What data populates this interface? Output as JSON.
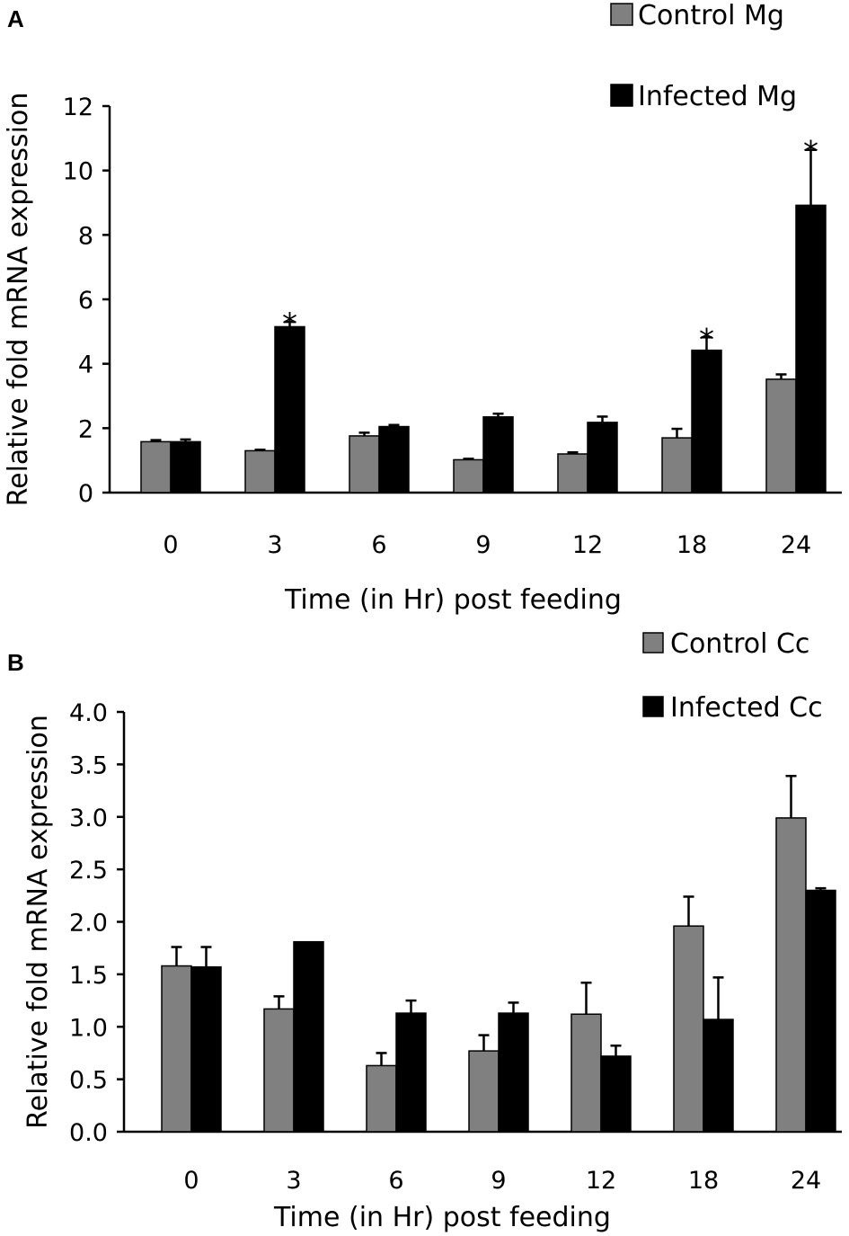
{
  "chart_data": [
    {
      "panel": "A",
      "type": "bar",
      "title": "",
      "xlabel": "Time (in Hr) post feeding",
      "ylabel": "Relative fold mRNA expression",
      "categories": [
        "0",
        "3",
        "6",
        "9",
        "12",
        "18",
        "24"
      ],
      "ylim": [
        0,
        12
      ],
      "yticks": [
        "0",
        "2",
        "4",
        "6",
        "8",
        "10",
        "12"
      ],
      "series": [
        {
          "name": "Control Mg",
          "color": "#808080",
          "values": [
            1.58,
            1.3,
            1.76,
            1.02,
            1.2,
            1.7,
            3.52
          ],
          "errors": [
            0.05,
            0.03,
            0.1,
            0.03,
            0.05,
            0.28,
            0.15
          ]
        },
        {
          "name": "Infected Mg",
          "color": "#000000",
          "values": [
            1.58,
            5.15,
            2.05,
            2.35,
            2.18,
            4.42,
            8.92
          ],
          "errors": [
            0.07,
            0.15,
            0.05,
            0.1,
            0.18,
            0.4,
            1.72
          ]
        }
      ],
      "annotations": [
        {
          "category": "3",
          "series": "Infected Mg",
          "text": "*"
        },
        {
          "category": "18",
          "series": "Infected Mg",
          "text": "*"
        },
        {
          "category": "24",
          "series": "Infected Mg",
          "text": "*"
        }
      ]
    },
    {
      "panel": "B",
      "type": "bar",
      "title": "",
      "xlabel": "Time (in Hr) post feeding",
      "ylabel": "Relative fold mRNA expression",
      "categories": [
        "0",
        "3",
        "6",
        "9",
        "12",
        "18",
        "24"
      ],
      "ylim": [
        0,
        4
      ],
      "yticks": [
        "0.0",
        "0.5",
        "1.0",
        "1.5",
        "2.0",
        "2.5",
        "3.0",
        "3.5",
        "4.0"
      ],
      "series": [
        {
          "name": "Control Cc",
          "color": "#808080",
          "values": [
            1.58,
            1.17,
            0.63,
            0.77,
            1.12,
            1.96,
            2.99
          ],
          "errors": [
            0.18,
            0.12,
            0.12,
            0.15,
            0.3,
            0.28,
            0.4
          ]
        },
        {
          "name": "Infected Cc",
          "color": "#000000",
          "values": [
            1.57,
            1.81,
            1.13,
            1.13,
            0.72,
            1.07,
            2.3
          ],
          "errors": [
            0.19,
            0.0,
            0.12,
            0.1,
            0.1,
            0.4,
            0.02
          ]
        }
      ],
      "annotations": []
    }
  ]
}
